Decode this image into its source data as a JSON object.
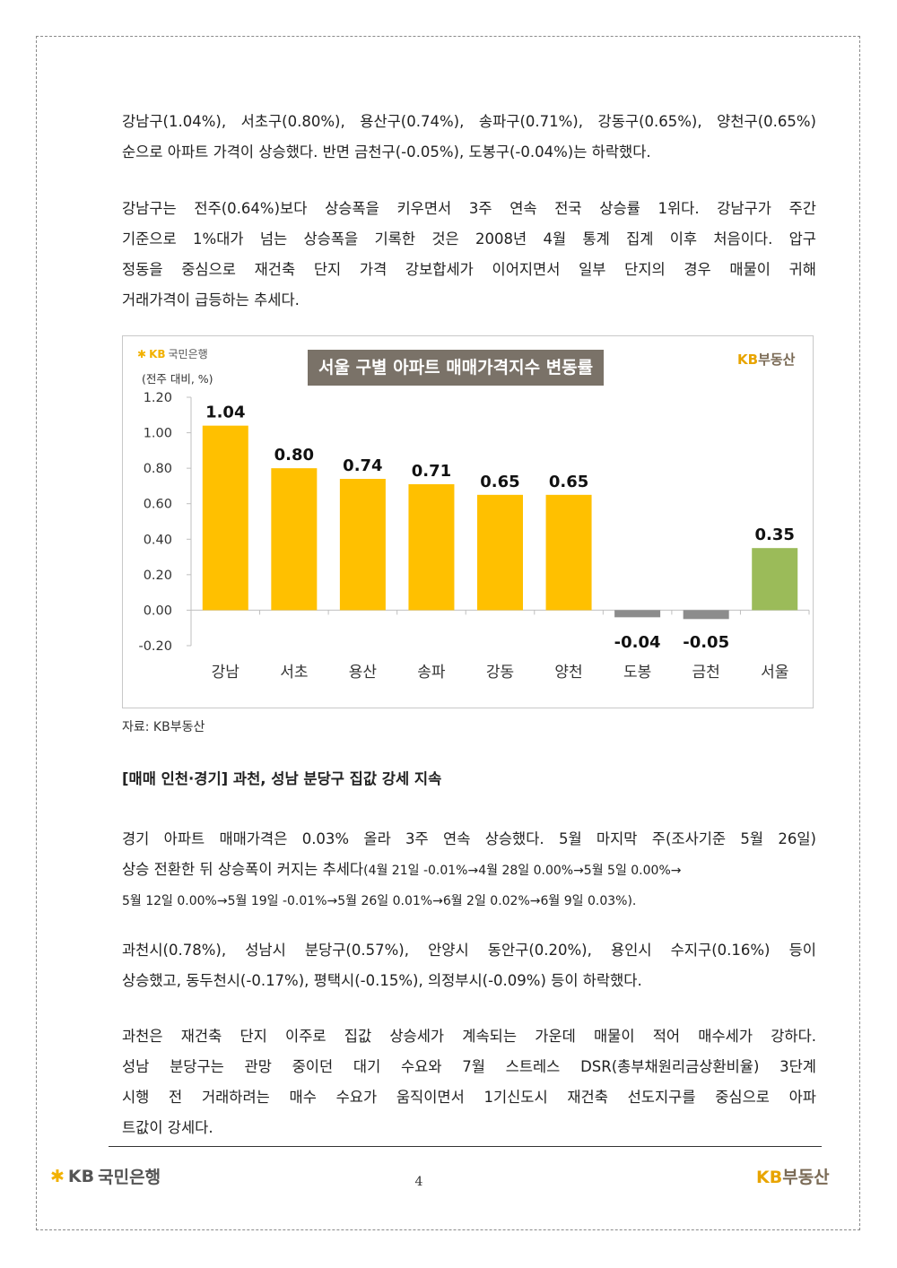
{
  "paragraphs": {
    "p1": [
      "강남구(1.04%), 서초구(0.80%), 용산구(0.74%), 송파구(0.71%), 강동구(0.65%), 양천구(0.65%)",
      "순으로 아파트 가격이 상승했다. 반면 금천구(-0.05%), 도봉구(-0.04%)는 하락했다."
    ],
    "p2": [
      "강남구는 전주(0.64%)보다 상승폭을 키우면서 3주 연속 전국 상승률 1위다. 강남구가 주간",
      "기준으로 1%대가 넘는 상승폭을 기록한 것은 2008년 4월 통계 집계 이후 처음이다. 압구",
      "정동을 중심으로 재건축 단지 가격 강보합세가 이어지면서 일부 단지의 경우 매물이 귀해",
      "거래가격이 급등하는 추세다."
    ],
    "p3": [
      "경기 아파트 매매가격은 0.03% 올라 3주 연속 상승했다. 5월 마지막 주(조사기준 5월 26일)",
      "상승 전환한 뒤 상승폭이 커지는 추세다",
      "(4월 21일 -0.01%→4월 28일 0.00%→5월 5일 0.00%→",
      "5월 12일 0.00%→5월 19일 -0.01%→5월 26일 0.01%→6월 2일 0.02%→6월 9일 0.03%)."
    ],
    "p4": [
      "과천시(0.78%), 성남시 분당구(0.57%), 안양시 동안구(0.20%), 용인시 수지구(0.16%) 등이",
      "상승했고, 동두천시(-0.17%), 평택시(-0.15%), 의정부시(-0.09%) 등이 하락했다."
    ],
    "p5": [
      "과천은 재건축 단지 이주로 집값 상승세가 계속되는 가운데 매물이 적어 매수세가 강하다.",
      "성남 분당구는 관망 중이던 대기 수요와 7월 스트레스 DSR(총부채원리금상환비율) 3단계",
      "시행 전 거래하려는 매수 수요가 움직이면서 1기신도시 재건축 선도지구를 중심으로 아파",
      "트값이 강세다."
    ]
  },
  "section_heading": "[매매 인천·경기] 과천, 성남 분당구 집값 강세 지속",
  "chart": {
    "bank_logo": "국민은행",
    "bank_logo_kb": "KB",
    "unit": "(전주 대비, %)",
    "re_logo_kb": "KB",
    "re_logo_text": "부동산",
    "source": "자료: KB부동산"
  },
  "chart_data": {
    "type": "bar",
    "title": "서울 구별 아파트 매매가격지수 변동률",
    "ylabel": "(전주 대비, %)",
    "xlabel": "",
    "categories": [
      "강남",
      "서초",
      "용산",
      "송파",
      "강동",
      "양천",
      "도봉",
      "금천",
      "서울"
    ],
    "values": [
      1.04,
      0.8,
      0.74,
      0.71,
      0.65,
      0.65,
      -0.04,
      -0.05,
      0.35
    ],
    "data_labels": [
      "1.04",
      "0.80",
      "0.74",
      "0.71",
      "0.65",
      "0.65",
      "-0.04",
      "-0.05",
      "0.35"
    ],
    "ylim": [
      -0.2,
      1.2
    ],
    "yticks": [
      -0.2,
      0.0,
      0.2,
      0.4,
      0.6,
      0.8,
      1.0,
      1.2
    ],
    "ytick_labels": [
      "-0.20",
      "0.00",
      "0.20",
      "0.40",
      "0.60",
      "0.80",
      "1.00",
      "1.20"
    ],
    "grid": false,
    "colors": {
      "positive": "#ffc000",
      "negative": "#8c8c8c",
      "total": "#9bbb59"
    }
  },
  "footer": {
    "bank_kb": "KB",
    "bank_name": "국민은행",
    "page_number": "4",
    "re_kb": "KB",
    "re_name": "부동산"
  }
}
